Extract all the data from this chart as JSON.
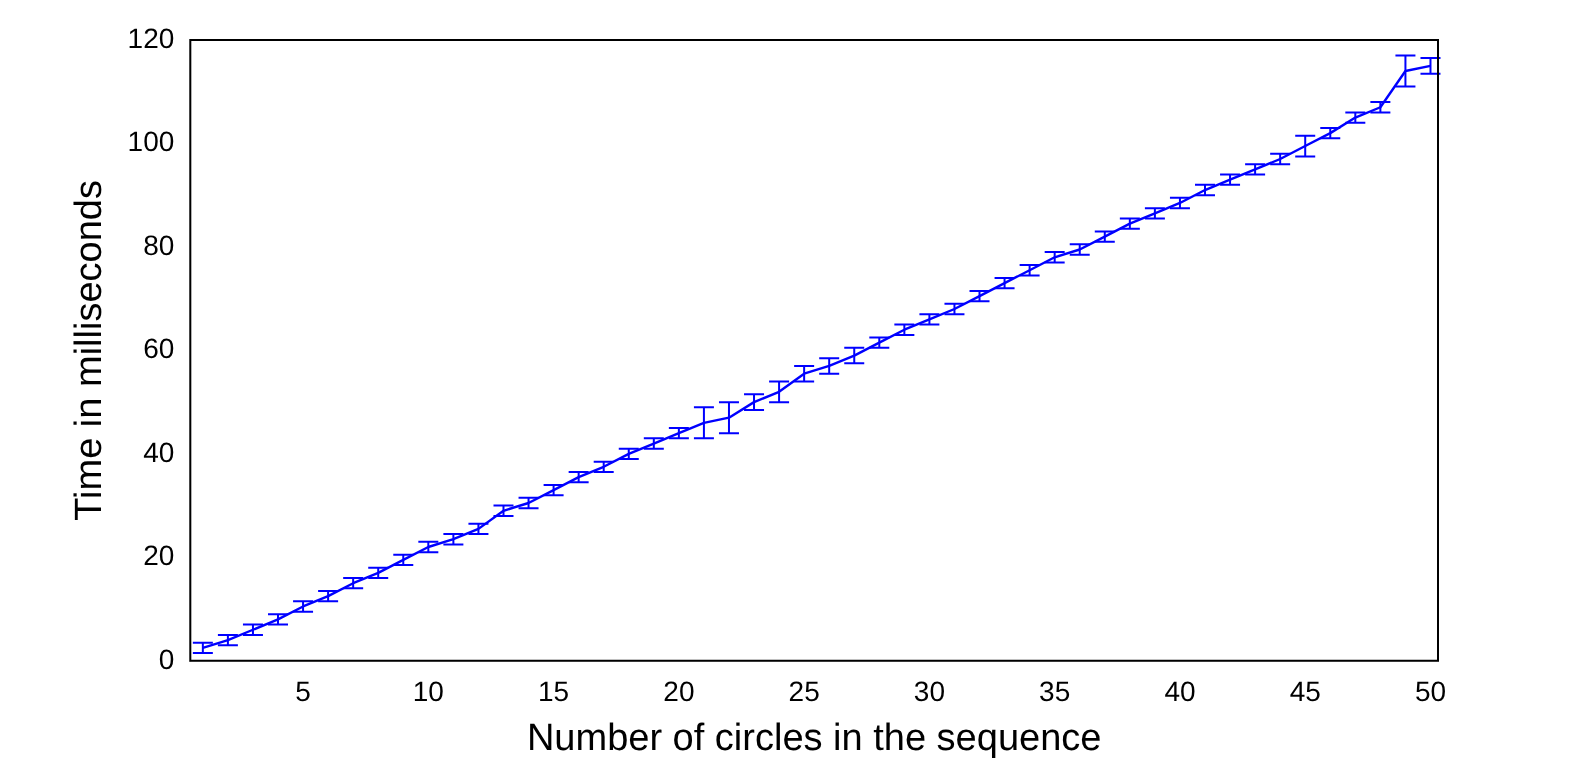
{
  "chart_data": {
    "type": "line",
    "xlabel": "Number of circles in the sequence",
    "ylabel": "Time in milliseconds",
    "x": [
      1,
      2,
      3,
      4,
      5,
      6,
      7,
      8,
      9,
      10,
      11,
      12,
      13,
      14,
      15,
      16,
      17,
      18,
      19,
      20,
      21,
      22,
      23,
      24,
      25,
      26,
      27,
      28,
      29,
      30,
      31,
      32,
      33,
      34,
      35,
      36,
      37,
      38,
      39,
      40,
      41,
      42,
      43,
      44,
      45,
      46,
      47,
      48,
      49,
      50
    ],
    "series": [
      {
        "color": "#0000ff",
        "values": [
          2.5,
          4,
          6,
          8,
          10.5,
          12.5,
          15,
          17,
          19.5,
          22,
          23.5,
          25.5,
          29,
          30.5,
          33,
          35.5,
          37.5,
          40,
          42,
          44,
          46,
          47,
          50,
          52,
          55.5,
          57,
          59,
          61.5,
          64,
          66,
          68,
          70.5,
          73,
          75.5,
          78,
          79.5,
          82,
          84.5,
          86.5,
          88.5,
          91,
          93,
          95,
          97,
          99.5,
          102,
          105,
          107,
          114,
          115
        ],
        "errors": [
          1,
          1,
          1,
          1,
          1,
          1,
          1,
          1,
          1,
          1,
          1,
          1,
          1,
          1,
          1,
          1,
          1,
          1,
          1,
          1,
          3,
          3,
          1.5,
          2,
          1.5,
          1.5,
          1.5,
          1,
          1,
          1,
          1,
          1,
          1,
          1,
          1,
          1,
          1,
          1,
          1,
          1,
          1,
          1,
          1,
          1,
          2,
          1,
          1,
          1,
          3,
          1.5
        ]
      }
    ],
    "xlim": [
      0.5,
      50.3
    ],
    "xticks": [
      5,
      10,
      15,
      20,
      25,
      30,
      35,
      40,
      45,
      50
    ],
    "ylim": [
      0,
      120
    ],
    "yticks": [
      0,
      20,
      40,
      60,
      80,
      100,
      120
    ],
    "grid": false,
    "legend": false,
    "marker": "none",
    "line_style": "solid"
  }
}
